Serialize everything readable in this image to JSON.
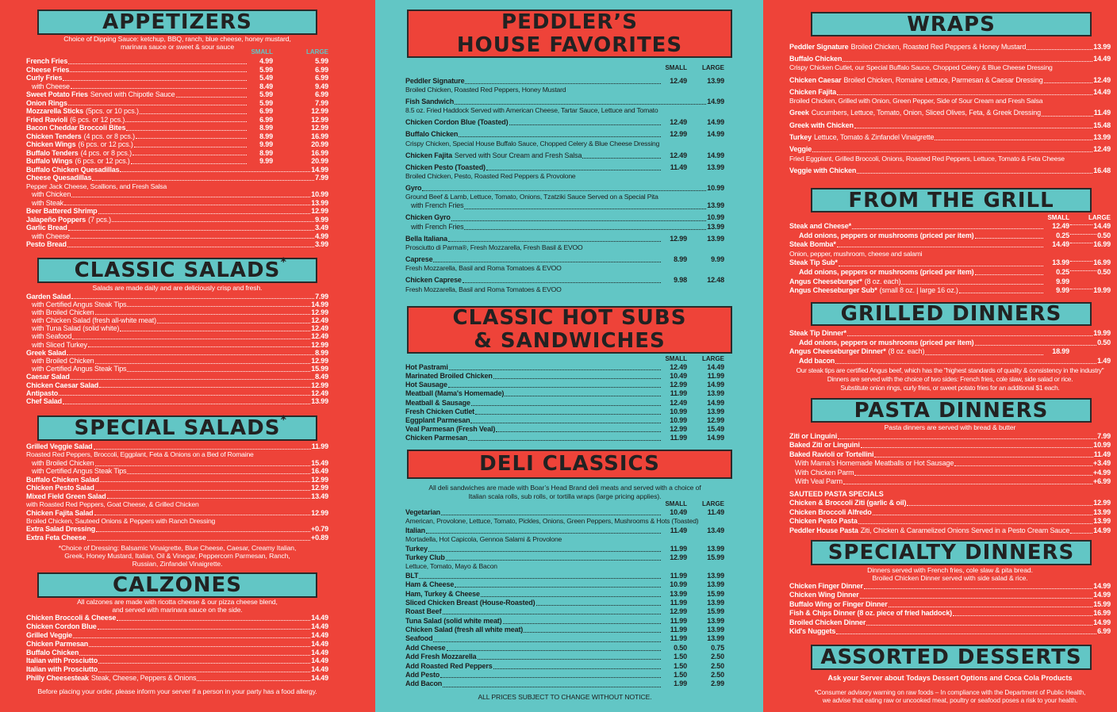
{
  "colors": {
    "red": "#ee4339",
    "teal": "#62c6c5",
    "dark": "#222222"
  },
  "appetizers": {
    "title": "APPETIZERS",
    "intro": [
      "Choice of Dipping Sauce: ketchup, BBQ, ranch, blue cheese, honey mustard,",
      "marinara sauce or sweet & sour sauce"
    ],
    "col_small": "SMALL",
    "col_large": "LARGE",
    "rows": [
      {
        "name": "French Fries",
        "small": "4.99",
        "large": "5.99"
      },
      {
        "name": "Cheese Fries",
        "small": "5.99",
        "large": "6.99"
      },
      {
        "name": "Curly Fries",
        "small": "5.49",
        "large": "6.99",
        "details": [
          {
            "sub": "with Cheese",
            "small": "8.49",
            "large": "9.49"
          }
        ]
      },
      {
        "name": "Sweet Potato Fries",
        "note": "Served with Chipotle Sauce",
        "small": "5.99",
        "large": "6.99"
      },
      {
        "name": "Onion Rings",
        "small": "5.99",
        "large": "7.99"
      },
      {
        "name": "Mozzarella Sticks",
        "note": "(5pcs. or 10 pcs.)",
        "small": "6.99",
        "large": "12.99"
      },
      {
        "name": "Fried Ravioli",
        "note": "(6 pcs. or 12 pcs.)",
        "small": "6.99",
        "large": "12.99"
      },
      {
        "name": "Bacon Cheddar Broccoli Bites",
        "small": "8.99",
        "large": "12.99"
      },
      {
        "name": "Chicken Tenders",
        "note": "(4 pcs. or 8 pcs.)",
        "small": "8.99",
        "large": "16.99"
      },
      {
        "name": "Chicken Wings",
        "note": "(6 pcs. or 12 pcs.)",
        "small": "9.99",
        "large": "20.99"
      },
      {
        "name": "Buffalo Tenders",
        "note": "(4 pcs. or 8 pcs.)",
        "small": "8.99",
        "large": "16.99"
      },
      {
        "name": "Buffalo Wings",
        "note": "(6 pcs. or 12 pcs.)",
        "small": "9.99",
        "large": "20.99"
      },
      {
        "name": "Buffalo Chicken Quesadillas",
        "price": "14.99"
      },
      {
        "name": "Cheese Quesadillas",
        "price": "7.99",
        "details": [
          "Pepper Jack Cheese, Scallions, and Fresh Salsa",
          {
            "sub": "with Chicken",
            "price": "10.99"
          },
          {
            "sub": "with Steak",
            "price": "13.99"
          }
        ]
      },
      {
        "name": "Beer Battered Shrimp",
        "price": "12.99"
      },
      {
        "name": "Jalapeño Poppers",
        "note": "(7 pcs.)",
        "price": "9.99"
      },
      {
        "name": "Garlic Bread",
        "price": "3.49",
        "details": [
          {
            "sub": "with Cheese",
            "price": "4.99"
          }
        ]
      },
      {
        "name": "Pesto Bread",
        "price": "3.99"
      }
    ]
  },
  "classic_salads": {
    "title": "CLASSIC SALADS",
    "mark": "*",
    "intro": [
      "Salads are made daily and are deliciously crisp and fresh."
    ],
    "rows": [
      {
        "name": "Garden Salad",
        "price": "7.99",
        "details": [
          {
            "sub": "with Certified Angus Steak Tips",
            "price": "14.99"
          },
          {
            "sub": "with Broiled Chicken",
            "price": "12.99"
          },
          {
            "sub": "with Chicken Salad (fresh all-white meat)",
            "price": "12.49"
          },
          {
            "sub": "with Tuna Salad (solid white)",
            "price": "12.49"
          },
          {
            "sub": "with Seafood",
            "price": "12.49"
          },
          {
            "sub": "with Sliced Turkey",
            "price": "12.99"
          }
        ]
      },
      {
        "name": "Greek Salad",
        "price": "8.99",
        "details": [
          {
            "sub": "with Broiled Chicken",
            "price": "12.99"
          },
          {
            "sub": "with Certified Angus Steak Tips",
            "price": "15.99"
          }
        ]
      },
      {
        "name": "Caesar Salad",
        "price": "8.49"
      },
      {
        "name": "Chicken Caesar Salad",
        "price": "12.99"
      },
      {
        "name": "Antipasto",
        "price": "12.49"
      },
      {
        "name": "Chef Salad",
        "price": "13.99"
      }
    ]
  },
  "special_salads": {
    "title": "SPECIAL SALADS",
    "mark": "*",
    "rows": [
      {
        "name": "Grilled Veggie Salad",
        "price": "11.99",
        "details": [
          "Roasted Red Peppers, Broccoli, Eggplant, Feta & Onions on a Bed of Romaine",
          {
            "sub": "with Broiled Chicken",
            "price": "15.49"
          },
          {
            "sub": "with Certified Angus Steak Tips",
            "price": "16.49"
          }
        ]
      },
      {
        "name": "Buffalo Chicken Salad",
        "price": "12.99"
      },
      {
        "name": "Chicken Pesto Salad",
        "price": "12.99"
      },
      {
        "name": "Mixed Field Green Salad",
        "price": "13.49",
        "details": [
          "  with Roasted Red Peppers, Goat Cheese, & Grilled Chicken"
        ]
      },
      {
        "name": "Chicken Fajita Salad",
        "price": "12.99",
        "details": [
          "Broiled Chicken, Sauteed Onions & Peppers with Ranch Dressing"
        ]
      },
      {
        "name": "Extra Salad Dressing",
        "price": "+0.79"
      },
      {
        "name": "Extra Feta Cheese",
        "price": "+0.89"
      }
    ],
    "footnote": [
      "*Choice of Dressing: Balsamic Vinaigrette, Blue Cheese, Caesar, Creamy Italian,",
      "Greek, Honey Mustard, Italian, Oil & Vinegar, Peppercorn Parmesan, Ranch,",
      "Russian, Zinfandel Vinaigrette."
    ]
  },
  "calzones": {
    "title": "CALZONES",
    "intro": [
      "All calzones are made with ricotta cheese & our pizza cheese blend,",
      "and served with marinara sauce on the side."
    ],
    "rows": [
      {
        "name": "Chicken Broccoli & Cheese",
        "price": "14.49"
      },
      {
        "name": "Chicken Cordon Blue",
        "price": "14.49"
      },
      {
        "name": "Grilled Veggie",
        "price": "14.49"
      },
      {
        "name": "Chicken Parmesan",
        "price": "14.49"
      },
      {
        "name": "Buffalo Chicken",
        "price": "14.49"
      },
      {
        "name": "Italian with Prosciutto",
        "price": "14.49"
      },
      {
        "name": "Italian with Prosciutto",
        "price": "14.49"
      },
      {
        "name": "Philly Cheesesteak",
        "note": " Steak, Cheese, Peppers & Onions",
        "price": "14.49"
      }
    ],
    "allergy_note": "Before placing your order, please inform your server if a person in your party has a food allergy."
  },
  "house_favorites": {
    "title_line1": "PEDDLER’S",
    "title_line2": "HOUSE FAVORITES",
    "col_small": "SMALL",
    "col_large": "LARGE",
    "rows": [
      {
        "name": "Peddler Signature",
        "small": "12.49",
        "large": "13.99",
        "details": [
          "Broiled Chicken, Roasted Red Peppers, Honey Mustard"
        ]
      },
      {
        "name": "Fish Sandwich",
        "price": "14.99",
        "details": [
          "8.5 oz. Fried Haddock Served with American Cheese, Tartar Sauce, Lettuce and Tomato"
        ]
      },
      {
        "name": "Chicken Cordon Blue (Toasted)",
        "small": "12.49",
        "large": "14.99"
      },
      {
        "name": "Buffalo Chicken",
        "small": "12.99",
        "large": "14.99",
        "details": [
          "Crispy Chicken, Special House Buffalo Sauce, Chopped Celery & Blue Cheese Dressing"
        ]
      },
      {
        "name": "Chicken Fajita",
        "note": "Served with Sour Cream and Fresh Salsa",
        "small": "12.49",
        "large": "14.99"
      },
      {
        "name": "Chicken Pesto (Toasted)",
        "small": "11.49",
        "large": "13.99",
        "details": [
          "Broiled Chicken, Pesto, Roasted Red Peppers & Provolone"
        ]
      },
      {
        "name": "Gyro",
        "price": "10.99",
        "details": [
          "Ground Beef & Lamb, Lettuce, Tomato, Onions, Tzatziki Sauce Served on a Special Pita",
          {
            "sub": "with French Fries",
            "price": "13.99"
          }
        ]
      },
      {
        "name": "Chicken Gyro",
        "price": "10.99",
        "details": [
          {
            "sub": "with French Fries",
            "price": "13.99"
          }
        ]
      },
      {
        "name": "Bella Italiana",
        "small": "12.99",
        "large": "13.99",
        "details": [
          "Prosciutto di Parma®, Fresh Mozzarella, Fresh Basil & EVOO"
        ]
      },
      {
        "name": "Caprese",
        "small": "8.99",
        "large": "9.99",
        "details": [
          "Fresh Mozzarella, Basil and Roma Tomatoes & EVOO"
        ]
      },
      {
        "name": "Chicken Caprese",
        "small": "9.98",
        "large": "12.48",
        "details": [
          "Fresh Mozzarella, Basil and Roma Tomatoes & EVOO"
        ]
      }
    ]
  },
  "hot_subs": {
    "title_line1": "CLASSIC HOT SUBS",
    "title_line2": "& SANDWICHES",
    "col_small": "SMALL",
    "col_large": "LARGE",
    "rows": [
      {
        "name": "Hot Pastrami",
        "small": "12.49",
        "large": "14.49"
      },
      {
        "name": "Marinated Broiled Chicken",
        "small": "10.49",
        "large": "11.99"
      },
      {
        "name": "Hot Sausage",
        "small": "12.99",
        "large": "14.99"
      },
      {
        "name": "Meatball (Mama's Homemade)",
        "small": "11.99",
        "large": "13.99"
      },
      {
        "name": "Meatball & Sausage",
        "small": "12.49",
        "large": "14.99"
      },
      {
        "name": "Fresh Chicken Cutlet",
        "small": "10.99",
        "large": "13.99"
      },
      {
        "name": "Eggplant Parmesan",
        "small": "10.99",
        "large": "12.99"
      },
      {
        "name": "Veal Parmesan (Fresh Veal)",
        "small": "12.99",
        "large": "15.49"
      },
      {
        "name": "Chicken Parmesan",
        "small": "11.99",
        "large": "14.99"
      }
    ]
  },
  "deli_classics": {
    "title": "DELI CLASSICS",
    "intro": [
      "All deli sandwiches are made with Boar’s Head Brand deli meats and served with a choice of",
      "Italian scala rolls, sub rolls, or tortilla wraps (large pricing applies)."
    ],
    "col_small": "SMALL",
    "col_large": "LARGE",
    "rows": [
      {
        "name": "Vegetarian",
        "small": "10.49",
        "large": "11.49",
        "details": [
          "American, Provolone, Lettuce, Tomato, Pickles, Onions, Green Peppers, Mushrooms & Hots (Toasted)"
        ]
      },
      {
        "name": "Italian",
        "small": "11.49",
        "large": "13.49",
        "details": [
          "Mortadella, Hot Capicola, Gennoa Salami & Provolone"
        ]
      },
      {
        "name": "Turkey",
        "small": "11.99",
        "large": "13.99"
      },
      {
        "name": "Turkey Club",
        "small": "12.99",
        "large": "15.99",
        "details": [
          "Lettuce, Tomato, Mayo & Bacon"
        ]
      },
      {
        "name": "BLT",
        "small": "11.99",
        "large": "13.99"
      },
      {
        "name": "Ham & Cheese",
        "small": "10.99",
        "large": "13.99"
      },
      {
        "name": "Ham, Turkey & Cheese",
        "small": "13.99",
        "large": "15.99"
      },
      {
        "name": "Sliced Chicken Breast (House-Roasted)",
        "small": "11.99",
        "large": "13.99"
      },
      {
        "name": "Roast Beef",
        "small": "12.99",
        "large": "15.99"
      },
      {
        "name": "Tuna Salad (solid white meat)",
        "small": "11.99",
        "large": "13.99"
      },
      {
        "name": "Chicken Salad (fresh all white meat)",
        "small": "11.99",
        "large": "13.99"
      },
      {
        "name": "Seafood",
        "small": "11.99",
        "large": "13.99"
      },
      {
        "name": "Add Cheese",
        "small": "0.50",
        "large": "0.75"
      },
      {
        "name": "Add Fresh Mozzarella",
        "small": "1.50",
        "large": "2.50"
      },
      {
        "name": "Add Roasted Red Peppers",
        "small": "1.50",
        "large": "2.50"
      },
      {
        "name": "Add Pesto",
        "small": "1.50",
        "large": "2.50"
      },
      {
        "name": "Add Bacon",
        "small": "1.99",
        "large": "2.99"
      }
    ],
    "footer": "ALL PRICES SUBJECT TO CHANGE WITHOUT NOTICE."
  },
  "wraps": {
    "title": "WRAPS",
    "rows": [
      {
        "name": "Peddler Signature",
        "note": " Broiled Chicken, Roasted Red Peppers & Honey Mustard",
        "price": "13.99"
      },
      {
        "name": "Buffalo Chicken",
        "price": "14.49",
        "details": [
          "Crispy Chicken Cutlet, our Special Buffalo Sauce, Chopped Celery & Blue Cheese Dressing"
        ]
      },
      {
        "name": "Chicken Caesar",
        "note": " Broiled Chicken, Romaine Lettuce, Parmesan & Caesar Dressing",
        "price": "12.49"
      },
      {
        "name": "Chicken Fajita",
        "price": "14.49",
        "details": [
          "Broiled Chicken, Grilled with Onion, Green Pepper, Side of Sour Cream and Fresh Salsa"
        ]
      },
      {
        "name": "Greek",
        "note": " Cucumbers, Lettuce, Tomato, Onion, Sliced Olives, Feta, & Greek Dressing",
        "price": "11.49"
      },
      {
        "name": "Greek with Chicken",
        "price": "15.48"
      },
      {
        "name": "Turkey",
        "note": "Lettuce, Tomato & Zinfandel Vinaigrette",
        "price": "13.99"
      },
      {
        "name": "Veggie",
        "price": "12.49",
        "details": [
          "Fried Eggplant, Grilled Broccoli, Onions, Roasted Red Peppers, Lettuce, Tomato & Feta Cheese"
        ]
      },
      {
        "name": "Veggie with Chicken",
        "price": "16.48"
      }
    ]
  },
  "from_the_grill": {
    "title": "FROM THE GRILL",
    "col_small": "SMALL",
    "col_large": "LARGE",
    "rows": [
      {
        "name": "Steak and Cheese*",
        "small": "12.49",
        "large": "14.49",
        "details": [
          {
            "sub": "Add onions, peppers or mushrooms (priced per item)",
            "small": "0.25",
            "large": "0.50"
          }
        ]
      },
      {
        "name": "Steak Bomba*",
        "small": "14.49",
        "large": "16.99",
        "details": [
          "  Onion, pepper, mushroom, cheese and salami"
        ]
      },
      {
        "name": "Steak Tip Sub*",
        "small": "13.99",
        "large": "16.99",
        "details": [
          {
            "sub": "Add onions, peppers or mushrooms (priced per item)",
            "small": "0.25",
            "large": "0.50"
          }
        ]
      },
      {
        "name": "Angus Cheeseburger*",
        "note": "(8 oz. each)",
        "small": "9.99"
      },
      {
        "name": "Angus Cheeseburger Sub*",
        "note": "(small 8 oz. | large 16 oz.)",
        "small": "9.99",
        "large": "19.99"
      }
    ]
  },
  "grilled_dinners": {
    "title": "GRILLED DINNERS",
    "rows": [
      {
        "name": "Steak Tip Dinner*",
        "price": "19.99",
        "details": [
          {
            "sub": "Add onions, peppers or mushrooms (priced per item)",
            "price": "0.50"
          }
        ]
      },
      {
        "name": "Angus Cheeseburger Dinner*",
        "note": "(8 oz. each)",
        "small": "18.99",
        "details": [
          {
            "sub": "Add bacon",
            "price": "1.49"
          }
        ]
      }
    ],
    "notes": [
      "Our steak tips are certified Angus beef, which has the \"highest standards of quality & consistency in the industry\"",
      "Dinners are served with the choice of two sides: French fries, cole slaw, side salad or rice.",
      "Substitute onion rings, curly fries, or sweet potato fries for an additional $1 each."
    ]
  },
  "pasta_dinners": {
    "title": "PASTA DINNERS",
    "intro": [
      "Pasta dinners are served with bread & butter"
    ],
    "rows": [
      {
        "name": "Ziti or Linguini",
        "price": "7.99"
      },
      {
        "name": "Baked Ziti or Linguini",
        "price": "10.99"
      },
      {
        "name": "Baked Ravioli or Tortellini",
        "price": "11.49",
        "details": [
          {
            "sub": "With Mama’s Homemade Meatballs or Hot Sausage",
            "price": "+3.49"
          },
          {
            "sub": "With Chicken Parm",
            "price": "+4.99"
          },
          {
            "sub": "With Veal Parm",
            "price": "+6.99"
          }
        ]
      },
      {
        "heading": "SAUTEED PASTA SPECIALS"
      },
      {
        "name": "Chicken & Broccoli Ziti (garlic & oil)",
        "price": "12.99"
      },
      {
        "name": "Chicken Broccoli Alfredo",
        "price": "13.99"
      },
      {
        "name": "Chicken Pesto Pasta",
        "price": "13.99"
      },
      {
        "name": "Peddler House Pasta",
        "note": " Ziti, Chicken & Caramelized Onions Served in a Pesto Cream Sauce",
        "price": "14.99"
      }
    ]
  },
  "specialty_dinners": {
    "title": "SPECIALTY DINNERS",
    "intro": [
      "Dinners served with French fries, cole slaw & pita bread.",
      "Broiled Chicken Dinner served with side salad & rice."
    ],
    "rows": [
      {
        "name": "Chicken Finger Dinner",
        "price": "14.99"
      },
      {
        "name": "Chicken Wing Dinner",
        "price": "14.99"
      },
      {
        "name": "Buffalo Wing or Finger Dinner",
        "price": "15.99"
      },
      {
        "name": "Fish & Chips Dinner (8 oz. piece of fried haddock)",
        "price": "16.99"
      },
      {
        "name": "Broiled Chicken Dinner",
        "price": "14.99"
      },
      {
        "name": "Kid's Nuggets",
        "price": "6.99"
      }
    ]
  },
  "desserts": {
    "title": "ASSORTED DESSERTS",
    "ask": "Ask your Server about Todays Dessert Options and Coca Cola Products",
    "advisory": [
      "*Consumer advisory warning on raw foods – In compliance with the Department of Public Health,",
      "we advise that eating raw or uncooked meat, poultry or seafood poses a risk to your health."
    ]
  }
}
